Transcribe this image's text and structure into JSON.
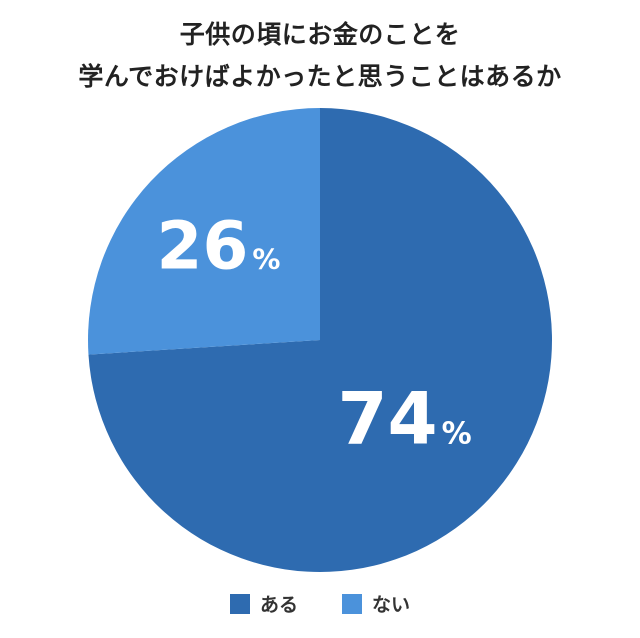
{
  "chart_data": {
    "type": "pie",
    "title_lines": [
      "子供の頃にお金のことを",
      "学んでおけばよかったと思うことはあるか"
    ],
    "unit": "%",
    "slices": [
      {
        "label": "ある",
        "value": 74,
        "color": "#2e6bb0"
      },
      {
        "label": "ない",
        "value": 26,
        "color": "#4b92db"
      }
    ],
    "legend_position": "bottom"
  }
}
